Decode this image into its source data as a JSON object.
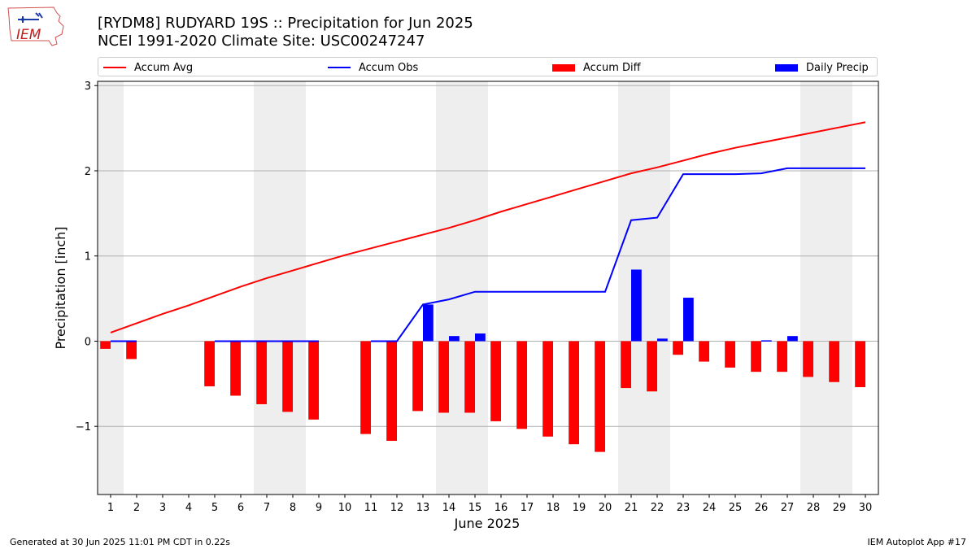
{
  "header": {
    "title_line1": "[RYDM8] RUDYARD 19S :: Precipitation for Jun 2025",
    "title_line2": "NCEI 1991-2020 Climate Site: USC00247247",
    "logo_text": "IEM"
  },
  "footer": {
    "generated": "Generated at 30 Jun 2025 11:01 PM CDT in 0.22s",
    "app": "IEM Autoplot App #17"
  },
  "chart_data": {
    "type": "bar",
    "xlabel": "June 2025",
    "ylabel": "Precipitation [inch]",
    "ylim": [
      -1.8,
      3.05
    ],
    "yticks": [
      3,
      2,
      1,
      0,
      -1
    ],
    "ytick_labels": [
      "3",
      "2",
      "1",
      "0",
      "−1"
    ],
    "grid": true,
    "legend_position": "top",
    "days": [
      1,
      2,
      3,
      4,
      5,
      6,
      7,
      8,
      9,
      10,
      11,
      12,
      13,
      14,
      15,
      16,
      17,
      18,
      19,
      20,
      21,
      22,
      23,
      24,
      25,
      26,
      27,
      28,
      29,
      30
    ],
    "weekend_shading": [
      [
        1,
        1
      ],
      [
        7,
        8
      ],
      [
        14,
        15
      ],
      [
        21,
        22
      ],
      [
        28,
        29
      ]
    ],
    "series": [
      {
        "name": "Accum Avg",
        "kind": "line",
        "color": "#ff0000",
        "values": [
          0.1,
          0.21,
          0.32,
          0.42,
          0.53,
          0.64,
          0.74,
          0.83,
          0.92,
          1.01,
          1.09,
          1.17,
          1.25,
          1.33,
          1.42,
          1.52,
          1.61,
          1.7,
          1.79,
          1.88,
          1.97,
          2.04,
          2.12,
          2.2,
          2.27,
          2.33,
          2.39,
          2.45,
          2.51,
          2.57
        ]
      },
      {
        "name": "Accum Obs",
        "kind": "line",
        "color": "#0000ff",
        "values": [
          0.0,
          0.0,
          null,
          null,
          0.0,
          0.0,
          0.0,
          0.0,
          0.0,
          null,
          0.0,
          0.0,
          0.43,
          0.49,
          0.58,
          0.58,
          0.58,
          0.58,
          0.58,
          0.58,
          1.42,
          1.45,
          1.96,
          1.96,
          1.96,
          1.97,
          2.03,
          2.03,
          2.03,
          2.03
        ]
      },
      {
        "name": "Accum Diff",
        "kind": "bar",
        "color": "#ff0000",
        "values": [
          -0.09,
          -0.21,
          null,
          null,
          -0.53,
          -0.64,
          -0.74,
          -0.83,
          -0.92,
          null,
          -1.09,
          -1.17,
          -0.82,
          -0.84,
          -0.84,
          -0.94,
          -1.03,
          -1.12,
          -1.21,
          -1.3,
          -0.55,
          -0.59,
          -0.16,
          -0.24,
          -0.31,
          -0.36,
          -0.36,
          -0.42,
          -0.48,
          -0.54
        ]
      },
      {
        "name": "Daily Precip",
        "kind": "bar",
        "color": "#0000ff",
        "values": [
          0.0,
          0.0,
          null,
          null,
          0.0,
          0.0,
          0.0,
          0.0,
          0.0,
          null,
          0.0,
          0.0,
          0.43,
          0.06,
          0.09,
          0.0,
          0.0,
          0.0,
          0.0,
          0.0,
          0.84,
          0.03,
          0.51,
          0.0,
          0.0,
          0.01,
          0.06,
          0.0,
          0.0,
          0.0
        ]
      }
    ]
  }
}
